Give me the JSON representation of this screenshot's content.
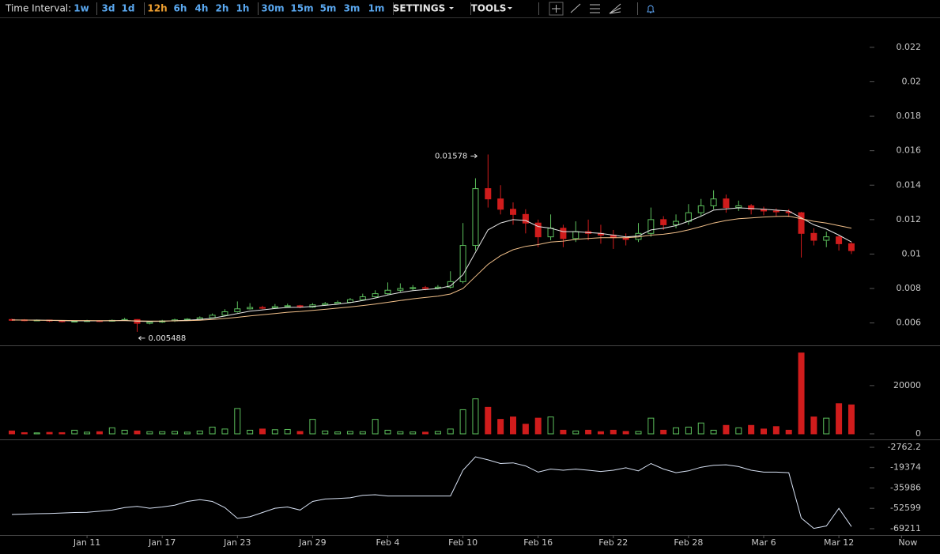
{
  "toolbar": {
    "label": "Time Interval:",
    "intervals": [
      "1w",
      "3d",
      "1d",
      "12h",
      "6h",
      "4h",
      "2h",
      "1h",
      "30m",
      "15m",
      "5m",
      "3m",
      "1m"
    ],
    "active": "12h",
    "menus": [
      "SETTINGS",
      "TOOLS"
    ]
  },
  "chart_data": [
    {
      "type": "candlestick",
      "up_color": "#5cbf5c",
      "down_color": "#d01c1c",
      "ylim": [
        0.0047,
        0.0236
      ],
      "yticks": [
        0.006,
        0.008,
        0.01,
        0.012,
        0.014,
        0.016,
        0.018,
        0.02,
        0.022
      ],
      "open": [
        0.0062,
        0.00618,
        0.00615,
        0.00617,
        0.00612,
        0.00608,
        0.0061,
        0.00613,
        0.00611,
        0.00615,
        0.0062,
        0.00598,
        0.00605,
        0.00612,
        0.00618,
        0.00622,
        0.0063,
        0.00645,
        0.00665,
        0.00682,
        0.0069,
        0.00688,
        0.00695,
        0.007,
        0.00692,
        0.00705,
        0.00712,
        0.0072,
        0.00735,
        0.00752,
        0.0077,
        0.0079,
        0.008,
        0.00805,
        0.00802,
        0.00808,
        0.0084,
        0.0105,
        0.0138,
        0.0132,
        0.0126,
        0.0123,
        0.0118,
        0.011,
        0.0115,
        0.0109,
        0.0113,
        0.0112,
        0.0111,
        0.01095,
        0.01085,
        0.0112,
        0.012,
        0.0117,
        0.0119,
        0.0124,
        0.0128,
        0.0132,
        0.0127,
        0.0128,
        0.0126,
        0.0125,
        0.01245,
        0.0124,
        0.0112,
        0.0108,
        0.011,
        0.0106
      ],
      "high": [
        0.00625,
        0.00622,
        0.0062,
        0.00619,
        0.00615,
        0.00614,
        0.00618,
        0.00616,
        0.0062,
        0.0063,
        0.00622,
        0.0061,
        0.00618,
        0.00625,
        0.00628,
        0.00638,
        0.00655,
        0.0068,
        0.00725,
        0.00715,
        0.007,
        0.0071,
        0.00712,
        0.00705,
        0.00715,
        0.00722,
        0.0073,
        0.00745,
        0.0077,
        0.0079,
        0.00835,
        0.0083,
        0.0082,
        0.00815,
        0.0082,
        0.009,
        0.0118,
        0.0144,
        0.01578,
        0.014,
        0.013,
        0.0126,
        0.012,
        0.0123,
        0.0117,
        0.0119,
        0.012,
        0.0117,
        0.0114,
        0.0112,
        0.0118,
        0.0127,
        0.0122,
        0.0123,
        0.0129,
        0.0132,
        0.0137,
        0.01345,
        0.0131,
        0.0129,
        0.01275,
        0.01265,
        0.0126,
        0.01245,
        0.0115,
        0.0113,
        0.0111,
        0.0107
      ],
      "low": [
        0.00612,
        0.0061,
        0.00611,
        0.00606,
        0.00603,
        0.00604,
        0.00606,
        0.00605,
        0.00608,
        0.00612,
        0.005488,
        0.00592,
        0.006,
        0.00606,
        0.00612,
        0.00618,
        0.00626,
        0.0064,
        0.0066,
        0.00678,
        0.0068,
        0.00684,
        0.0069,
        0.00685,
        0.00688,
        0.007,
        0.0071,
        0.00715,
        0.0073,
        0.00748,
        0.00765,
        0.0078,
        0.0079,
        0.0079,
        0.00795,
        0.008,
        0.0083,
        0.0102,
        0.0127,
        0.0123,
        0.0117,
        0.0112,
        0.0104,
        0.0108,
        0.0104,
        0.0107,
        0.0108,
        0.0106,
        0.0103,
        0.0105,
        0.0107,
        0.011,
        0.0114,
        0.0115,
        0.0117,
        0.0122,
        0.0126,
        0.0124,
        0.0125,
        0.0123,
        0.01225,
        0.0122,
        0.01215,
        0.0098,
        0.0105,
        0.0104,
        0.0102,
        0.01
      ],
      "close": [
        0.00618,
        0.00615,
        0.00617,
        0.00612,
        0.00608,
        0.0061,
        0.00613,
        0.00611,
        0.00615,
        0.0062,
        0.00598,
        0.00605,
        0.00612,
        0.00618,
        0.00622,
        0.0063,
        0.00645,
        0.00665,
        0.00682,
        0.0069,
        0.00688,
        0.00695,
        0.007,
        0.00692,
        0.00705,
        0.00712,
        0.0072,
        0.00735,
        0.00752,
        0.0077,
        0.0079,
        0.008,
        0.00805,
        0.00802,
        0.00808,
        0.0084,
        0.0105,
        0.0138,
        0.0132,
        0.0126,
        0.0123,
        0.0118,
        0.011,
        0.0115,
        0.0109,
        0.0113,
        0.0112,
        0.0111,
        0.01095,
        0.01085,
        0.0112,
        0.012,
        0.0117,
        0.0119,
        0.0124,
        0.0128,
        0.0132,
        0.0127,
        0.0128,
        0.0126,
        0.0125,
        0.01245,
        0.0124,
        0.0112,
        0.0108,
        0.011,
        0.0106,
        0.0102
      ],
      "lines": [
        {
          "color": "#e6e6e6",
          "values": [
            0.00618,
            0.00617,
            0.00617,
            0.00615,
            0.00613,
            0.00612,
            0.00612,
            0.00612,
            0.00613,
            0.00615,
            0.0061,
            0.00609,
            0.0061,
            0.00613,
            0.00616,
            0.0062,
            0.00628,
            0.0064,
            0.00655,
            0.00668,
            0.00676,
            0.00684,
            0.0069,
            0.00691,
            0.00696,
            0.00702,
            0.00709,
            0.00718,
            0.0073,
            0.00745,
            0.00762,
            0.00777,
            0.00788,
            0.00794,
            0.008,
            0.00815,
            0.0088,
            0.0101,
            0.0114,
            0.0118,
            0.012,
            0.01195,
            0.0116,
            0.0115,
            0.0113,
            0.0113,
            0.01125,
            0.0112,
            0.0111,
            0.011,
            0.01105,
            0.0114,
            0.0115,
            0.01165,
            0.0119,
            0.0122,
            0.01255,
            0.01262,
            0.01268,
            0.01265,
            0.0126,
            0.01255,
            0.0125,
            0.0121,
            0.0117,
            0.01145,
            0.0111,
            0.0107
          ]
        },
        {
          "color": "#f2c08a",
          "values": [
            0.00617,
            0.00617,
            0.00616,
            0.00616,
            0.00615,
            0.00614,
            0.00614,
            0.00613,
            0.00613,
            0.00613,
            0.00612,
            0.00611,
            0.00611,
            0.00612,
            0.00613,
            0.00616,
            0.0062,
            0.00626,
            0.00633,
            0.00641,
            0.00648,
            0.00655,
            0.00662,
            0.00667,
            0.00673,
            0.00679,
            0.00686,
            0.00693,
            0.00701,
            0.0071,
            0.0072,
            0.0073,
            0.0074,
            0.00748,
            0.00756,
            0.00768,
            0.008,
            0.0087,
            0.0094,
            0.0099,
            0.01025,
            0.01045,
            0.01055,
            0.0107,
            0.01075,
            0.01085,
            0.0109,
            0.01095,
            0.01095,
            0.01095,
            0.011,
            0.0111,
            0.01115,
            0.01125,
            0.0114,
            0.0116,
            0.0118,
            0.01195,
            0.01205,
            0.0121,
            0.01215,
            0.01218,
            0.0122,
            0.01205,
            0.0119,
            0.0118,
            0.01165,
            0.0115
          ]
        }
      ]
    },
    {
      "type": "bar",
      "up_color": "#5cbf5c",
      "down_color": "#d01c1c",
      "ylim": [
        -2300,
        36000
      ],
      "yticks": [
        0,
        20000
      ],
      "values": [
        1200,
        500,
        400,
        600,
        500,
        1500,
        700,
        900,
        2500,
        1500,
        1200,
        900,
        900,
        1000,
        700,
        1200,
        2800,
        2000,
        10500,
        1500,
        2000,
        1700,
        1800,
        1000,
        6000,
        1200,
        800,
        1000,
        900,
        6000,
        1500,
        900,
        800,
        700,
        1000,
        2000,
        10000,
        14500,
        11000,
        6000,
        7000,
        4000,
        6500,
        7000,
        1500,
        1200,
        1500,
        900,
        1500,
        1000,
        1000,
        6500,
        1500,
        2500,
        2800,
        4500,
        1500,
        3500,
        2500,
        3500,
        2000,
        3000,
        1500,
        33500,
        7000,
        6500,
        12500,
        12000
      ]
    },
    {
      "type": "line",
      "color": "#d8e2f4",
      "ylim": [
        -74400,
        2400
      ],
      "yticks": [
        -2762.2,
        -19374,
        -35986,
        -52599,
        -69211
      ],
      "categories": [
        null,
        null,
        null,
        null,
        null,
        null,
        "Jan 11",
        null,
        null,
        null,
        null,
        null,
        "Jan 17",
        null,
        null,
        null,
        null,
        null,
        "Jan 23",
        null,
        null,
        null,
        null,
        null,
        "Jan 29",
        null,
        null,
        null,
        null,
        null,
        "Feb 4",
        null,
        null,
        null,
        null,
        null,
        "Feb 10",
        null,
        null,
        null,
        null,
        null,
        "Feb 16",
        null,
        null,
        null,
        null,
        null,
        "Feb 22",
        null,
        null,
        null,
        null,
        null,
        "Feb 28",
        null,
        null,
        null,
        null,
        null,
        "Mar 6",
        null,
        null,
        null,
        null,
        null,
        "Mar 12",
        null,
        null,
        null,
        null,
        "Now"
      ],
      "values": [
        -57600,
        -57300,
        -57000,
        -56800,
        -56400,
        -56000,
        -55800,
        -55000,
        -54000,
        -52000,
        -51000,
        -52500,
        -51500,
        -50000,
        -47000,
        -45500,
        -47000,
        -52000,
        -60800,
        -59500,
        -56000,
        -52500,
        -51500,
        -54000,
        -47000,
        -45000,
        -44500,
        -44000,
        -42000,
        -41500,
        -42500,
        -42500,
        -42500,
        -42500,
        -42500,
        -42500,
        -21500,
        -10500,
        -13000,
        -16000,
        -15500,
        -18000,
        -23000,
        -20500,
        -21500,
        -20500,
        -21500,
        -22500,
        -21500,
        -19500,
        -22000,
        -16000,
        -20500,
        -23500,
        -22000,
        -19000,
        -17500,
        -17000,
        -18500,
        -21500,
        -23000,
        -23000,
        -23500,
        -60500,
        -69000,
        -67000,
        -52600,
        -67500,
        null,
        null,
        null,
        null
      ]
    }
  ]
}
